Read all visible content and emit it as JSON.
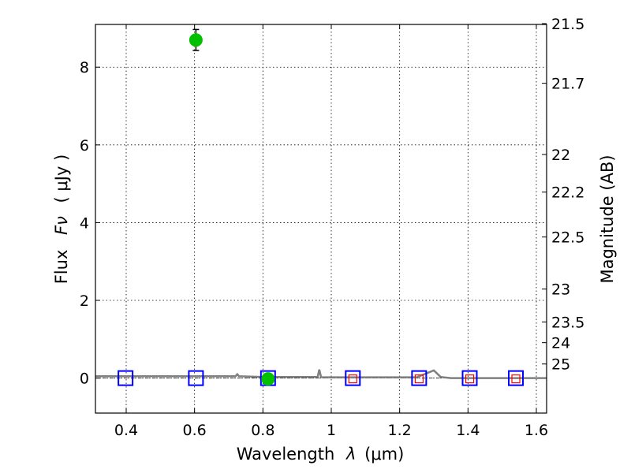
{
  "chart_data": {
    "type": "scatter",
    "xlabel_main": "Wavelength",
    "xlabel_symbol": "λ",
    "xlabel_unit": "(μm)",
    "ylabel_main": "Flux",
    "ylabel_symbol": "Fν",
    "ylabel_unit": "( μJy )",
    "y2label": "Magnitude (AB)",
    "xlim": [
      0.31,
      1.63
    ],
    "ylim": [
      -0.9,
      9.1
    ],
    "grid": true,
    "x_ticks": [
      0.4,
      0.6,
      0.8,
      1.0,
      1.2,
      1.4,
      1.6
    ],
    "x_tick_labels": [
      "0.4",
      "0.6",
      "0.8",
      "1",
      "1.2",
      "1.4",
      "1.6"
    ],
    "y_ticks": [
      0,
      2,
      4,
      6,
      8
    ],
    "y_tick_labels": [
      "0",
      "2",
      "4",
      "6",
      "8"
    ],
    "y2_ticks": [
      21.5,
      21.7,
      22,
      22.2,
      22.5,
      23,
      23.5,
      24,
      25
    ],
    "y2_tick_labels": [
      "21.5",
      "21.7",
      "22",
      "22.2",
      "22.5",
      "23",
      "23.5",
      "24",
      "25"
    ],
    "series": [
      {
        "name": "observed",
        "marker": "circle",
        "color": "#00c000",
        "x": [
          0.604,
          0.815
        ],
        "y": [
          8.7,
          -0.02
        ],
        "yerr": [
          0.27,
          0.1
        ]
      },
      {
        "name": "model_blue",
        "marker": "square",
        "color": "#0000ff",
        "x": [
          0.398,
          0.604,
          0.815,
          1.063,
          1.257,
          1.405,
          1.54
        ],
        "y": [
          0.0,
          0.0,
          0.0,
          0.0,
          0.0,
          0.0,
          0.0
        ]
      },
      {
        "name": "model_red",
        "marker": "square-small",
        "color": "#ff0000",
        "x": [
          1.063,
          1.257,
          1.405,
          1.54
        ],
        "y": [
          -0.02,
          -0.02,
          -0.02,
          -0.02
        ]
      },
      {
        "name": "template_spectrum",
        "type": "line",
        "color": "#808080",
        "x": [
          0.31,
          0.5,
          0.72,
          0.725,
          0.73,
          0.8,
          0.96,
          0.965,
          0.97,
          0.975,
          1.0,
          1.25,
          1.3,
          1.32,
          1.35,
          1.63
        ],
        "y": [
          0.05,
          0.05,
          0.05,
          0.1,
          0.05,
          0.03,
          0.03,
          0.22,
          0.03,
          0.02,
          0.02,
          0.02,
          0.2,
          0.03,
          0.0,
          0.0
        ]
      }
    ]
  },
  "colors": {
    "axis": "#000000",
    "grid": "#000000",
    "observed": "#00c000",
    "model_blue": "#0000ff",
    "model_red": "#ff0000",
    "spectrum": "#808080"
  }
}
